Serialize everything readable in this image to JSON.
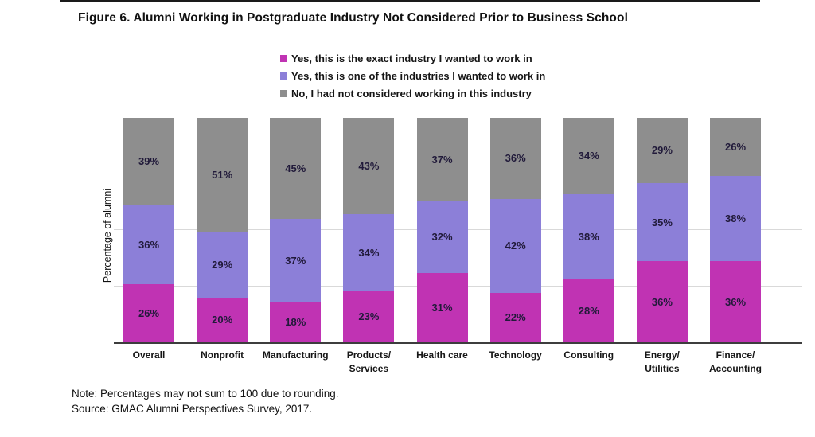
{
  "figure": {
    "title": "Figure 6. Alumni Working in Postgraduate Industry Not Considered Prior to Business School",
    "note": "Note: Percentages may not sum to 100 due to rounding.",
    "source": "Source: GMAC Alumni Perspectives Survey, 2017."
  },
  "chart_data": {
    "type": "bar",
    "stacked": true,
    "normalized_to_100": true,
    "title": "Figure 6. Alumni Working in Postgraduate Industry Not Considered Prior to Business School",
    "xlabel": "",
    "ylabel": "Percentage of alumni",
    "ylim": [
      0,
      100
    ],
    "y_tick_labels_shown": false,
    "gridlines_percent": [
      25,
      50,
      75
    ],
    "legend_position": "top-center",
    "value_suffix": "%",
    "categories": [
      "Overall",
      "Nonprofit",
      "Manufacturing",
      "Products/\nServices",
      "Health care",
      "Technology",
      "Consulting",
      "Energy/\nUtilities",
      "Finance/\nAccounting"
    ],
    "series": [
      {
        "name": "Yes, this is the exact industry I wanted to work in",
        "color": "#c033b3",
        "values": [
          26,
          20,
          18,
          23,
          31,
          22,
          28,
          36,
          36
        ]
      },
      {
        "name": "Yes, this is one of the industries I wanted to work in",
        "color": "#8c7fd8",
        "values": [
          36,
          29,
          37,
          34,
          32,
          42,
          38,
          35,
          38
        ]
      },
      {
        "name": "No, I had not considered working in this industry",
        "color": "#8e8e8e",
        "values": [
          39,
          51,
          45,
          43,
          37,
          36,
          34,
          29,
          26
        ]
      }
    ],
    "colors": {
      "value_label": "#211a3a",
      "gridline": "#d9d9d9",
      "axis_line": "#3d3d3d"
    }
  }
}
